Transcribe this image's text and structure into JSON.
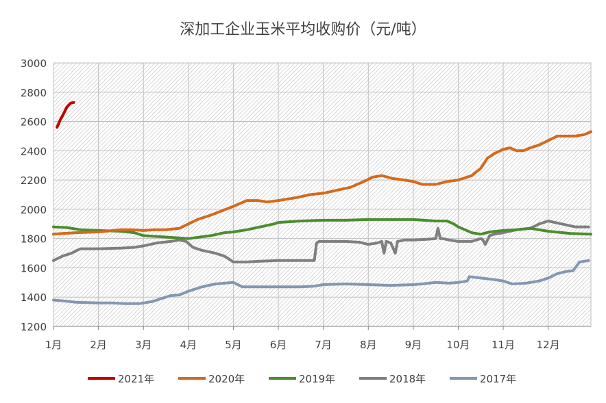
{
  "chart_data": {
    "type": "line",
    "title": "深加工企业玉米平均收购价（元/吨）",
    "xlabel": "",
    "ylabel": "",
    "x_categories": [
      "1月",
      "2月",
      "3月",
      "4月",
      "5月",
      "6月",
      "7月",
      "8月",
      "9月",
      "10月",
      "11月",
      "12月"
    ],
    "xlim": [
      1,
      12.95
    ],
    "ylim": [
      1200,
      3000
    ],
    "y_ticks": [
      1200,
      1400,
      1600,
      1800,
      2000,
      2200,
      2400,
      2600,
      2800,
      3000
    ],
    "grid": true,
    "legend_position": "bottom",
    "colors": {
      "2021年": "#c00000",
      "2020年": "#d46a1d",
      "2019年": "#4c8d2f",
      "2018年": "#7f7f7f",
      "2017年": "#8497b0"
    },
    "series": [
      {
        "name": "2021年",
        "x": [
          1.08,
          1.15,
          1.22,
          1.3,
          1.38,
          1.45
        ],
        "y": [
          2560,
          2610,
          2650,
          2700,
          2725,
          2730
        ]
      },
      {
        "name": "2020年",
        "x": [
          1.0,
          1.2,
          1.5,
          2.0,
          2.5,
          2.75,
          3.0,
          3.25,
          3.5,
          3.8,
          4.0,
          4.2,
          4.5,
          4.75,
          5.0,
          5.3,
          5.55,
          5.75,
          6.0,
          6.4,
          6.7,
          7.0,
          7.3,
          7.6,
          7.9,
          8.1,
          8.3,
          8.55,
          8.8,
          9.0,
          9.2,
          9.5,
          9.75,
          10.0,
          10.3,
          10.5,
          10.65,
          10.8,
          11.0,
          11.15,
          11.3,
          11.45,
          11.6,
          11.8,
          12.0,
          12.2,
          12.4,
          12.6,
          12.8,
          12.95
        ],
        "y": [
          1830,
          1835,
          1840,
          1845,
          1860,
          1860,
          1855,
          1860,
          1860,
          1870,
          1900,
          1930,
          1960,
          1990,
          2020,
          2060,
          2060,
          2050,
          2060,
          2080,
          2100,
          2110,
          2130,
          2150,
          2190,
          2220,
          2230,
          2210,
          2200,
          2190,
          2170,
          2170,
          2190,
          2200,
          2230,
          2280,
          2350,
          2380,
          2410,
          2420,
          2400,
          2400,
          2420,
          2440,
          2470,
          2500,
          2500,
          2500,
          2510,
          2530
        ]
      },
      {
        "name": "2019年",
        "x": [
          1.0,
          1.3,
          1.6,
          2.0,
          2.5,
          2.8,
          3.0,
          3.5,
          4.0,
          4.5,
          4.8,
          5.0,
          5.3,
          5.6,
          5.9,
          6.0,
          6.5,
          7.0,
          7.5,
          8.0,
          8.5,
          9.0,
          9.5,
          9.75,
          9.9,
          10.0,
          10.3,
          10.5,
          10.7,
          11.0,
          11.3,
          11.6,
          12.0,
          12.5,
          12.95
        ],
        "y": [
          1880,
          1875,
          1860,
          1855,
          1850,
          1840,
          1820,
          1810,
          1800,
          1820,
          1840,
          1845,
          1860,
          1880,
          1900,
          1910,
          1920,
          1925,
          1925,
          1930,
          1930,
          1930,
          1920,
          1920,
          1900,
          1880,
          1840,
          1830,
          1845,
          1855,
          1860,
          1870,
          1850,
          1835,
          1830
        ]
      },
      {
        "name": "2018年",
        "x": [
          1.0,
          1.2,
          1.4,
          1.6,
          2.0,
          2.5,
          2.8,
          3.0,
          3.3,
          3.6,
          3.8,
          3.95,
          4.1,
          4.3,
          4.6,
          4.8,
          4.9,
          5.0,
          5.3,
          5.6,
          6.0,
          6.5,
          6.8,
          6.85,
          6.9,
          7.0,
          7.2,
          7.5,
          7.8,
          8.0,
          8.2,
          8.3,
          8.35,
          8.4,
          8.5,
          8.6,
          8.65,
          8.8,
          9.0,
          9.3,
          9.5,
          9.55,
          9.6,
          9.65,
          9.8,
          10.0,
          10.3,
          10.5,
          10.55,
          10.6,
          10.7,
          10.8,
          11.0,
          11.3,
          11.6,
          11.8,
          12.0,
          12.3,
          12.6,
          12.9
        ],
        "y": [
          1650,
          1680,
          1700,
          1730,
          1730,
          1735,
          1740,
          1750,
          1770,
          1780,
          1790,
          1780,
          1740,
          1720,
          1700,
          1680,
          1660,
          1640,
          1640,
          1645,
          1650,
          1650,
          1650,
          1770,
          1780,
          1780,
          1780,
          1780,
          1775,
          1760,
          1770,
          1780,
          1700,
          1780,
          1770,
          1700,
          1780,
          1790,
          1790,
          1795,
          1800,
          1870,
          1800,
          1800,
          1790,
          1780,
          1780,
          1800,
          1790,
          1760,
          1820,
          1830,
          1840,
          1860,
          1870,
          1900,
          1920,
          1900,
          1880,
          1880
        ]
      },
      {
        "name": "2017年",
        "x": [
          1.0,
          1.2,
          1.5,
          2.0,
          2.3,
          2.6,
          2.9,
          3.0,
          3.2,
          3.4,
          3.6,
          3.8,
          4.0,
          4.3,
          4.6,
          4.8,
          5.0,
          5.2,
          5.5,
          6.0,
          6.5,
          6.8,
          7.0,
          7.5,
          8.0,
          8.5,
          9.0,
          9.2,
          9.5,
          9.8,
          10.0,
          10.2,
          10.25,
          10.5,
          10.8,
          11.0,
          11.2,
          11.5,
          11.8,
          12.0,
          12.2,
          12.4,
          12.55,
          12.7,
          12.9
        ],
        "y": [
          1380,
          1375,
          1365,
          1360,
          1360,
          1355,
          1355,
          1360,
          1370,
          1390,
          1410,
          1415,
          1440,
          1470,
          1490,
          1495,
          1500,
          1470,
          1470,
          1470,
          1470,
          1475,
          1485,
          1490,
          1485,
          1480,
          1485,
          1490,
          1500,
          1495,
          1500,
          1510,
          1540,
          1530,
          1520,
          1510,
          1490,
          1495,
          1510,
          1530,
          1560,
          1575,
          1580,
          1640,
          1650
        ]
      }
    ]
  }
}
